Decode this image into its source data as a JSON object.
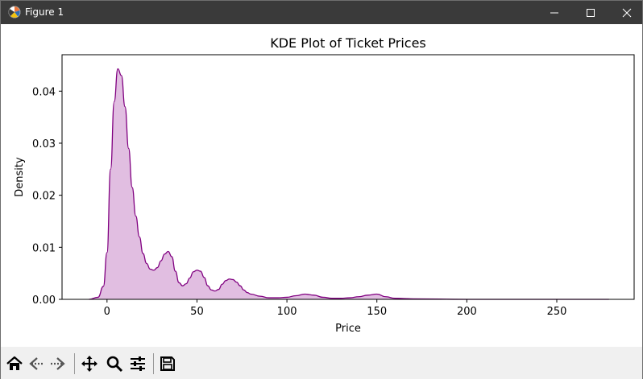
{
  "window": {
    "title": "Figure 1",
    "app_icon": "matplotlib-logo-icon",
    "controls": [
      "minimize-icon",
      "maximize-icon",
      "close-icon"
    ]
  },
  "toolbar": {
    "buttons": [
      {
        "name": "home",
        "icon": "home-icon"
      },
      {
        "name": "back",
        "icon": "back-arrow-icon"
      },
      {
        "name": "forward",
        "icon": "forward-arrow-icon"
      },
      {
        "name": "pan",
        "icon": "pan-move-icon"
      },
      {
        "name": "zoom",
        "icon": "zoom-magnifier-icon"
      },
      {
        "name": "configure",
        "icon": "configure-subplots-icon"
      },
      {
        "name": "save",
        "icon": "save-disk-icon"
      }
    ]
  },
  "chart_data": {
    "type": "area",
    "title": "KDE Plot of Ticket Prices",
    "xlabel": "Price",
    "ylabel": "Density",
    "xlim": [
      -25,
      293
    ],
    "ylim": [
      0,
      0.047
    ],
    "xticks": [
      0,
      50,
      100,
      150,
      200,
      250
    ],
    "xtick_labels": [
      "0",
      "50",
      "100",
      "150",
      "200",
      "250"
    ],
    "yticks": [
      0.0,
      0.01,
      0.02,
      0.03,
      0.04
    ],
    "ytick_labels": [
      "0.00",
      "0.01",
      "0.02",
      "0.03",
      "0.04"
    ],
    "grid": false,
    "line_color": "#800080",
    "fill_color": "#e1bee1",
    "series": [
      {
        "x": [
          -10,
          -5,
          -2,
          0,
          2,
          4,
          6,
          8,
          10,
          12,
          14,
          16,
          18,
          20,
          22,
          24,
          26,
          28,
          30,
          32,
          34,
          36,
          38,
          40,
          42,
          44,
          46,
          48,
          50,
          52,
          54,
          56,
          58,
          60,
          62,
          64,
          66,
          68,
          70,
          72,
          74,
          76,
          78,
          80,
          85,
          90,
          95,
          100,
          105,
          110,
          115,
          120,
          125,
          130,
          135,
          140,
          145,
          150,
          155,
          160,
          170,
          200,
          250,
          279
        ],
        "y": [
          0.0,
          0.0004,
          0.0025,
          0.009,
          0.025,
          0.038,
          0.0443,
          0.043,
          0.037,
          0.029,
          0.0215,
          0.016,
          0.012,
          0.0088,
          0.0069,
          0.0058,
          0.0056,
          0.0061,
          0.0074,
          0.0087,
          0.0092,
          0.0082,
          0.0054,
          0.0032,
          0.0026,
          0.003,
          0.0041,
          0.0053,
          0.0056,
          0.0054,
          0.0042,
          0.0026,
          0.0018,
          0.0016,
          0.0019,
          0.0029,
          0.0036,
          0.0039,
          0.0038,
          0.0033,
          0.0026,
          0.0018,
          0.0013,
          0.001,
          0.0006,
          0.0003,
          0.0003,
          0.0004,
          0.0007,
          0.001,
          0.0008,
          0.0004,
          0.0002,
          0.0002,
          0.0003,
          0.0005,
          0.0008,
          0.001,
          0.0005,
          0.0002,
          0.0001,
          0.0,
          0.0,
          0.0
        ]
      }
    ]
  }
}
